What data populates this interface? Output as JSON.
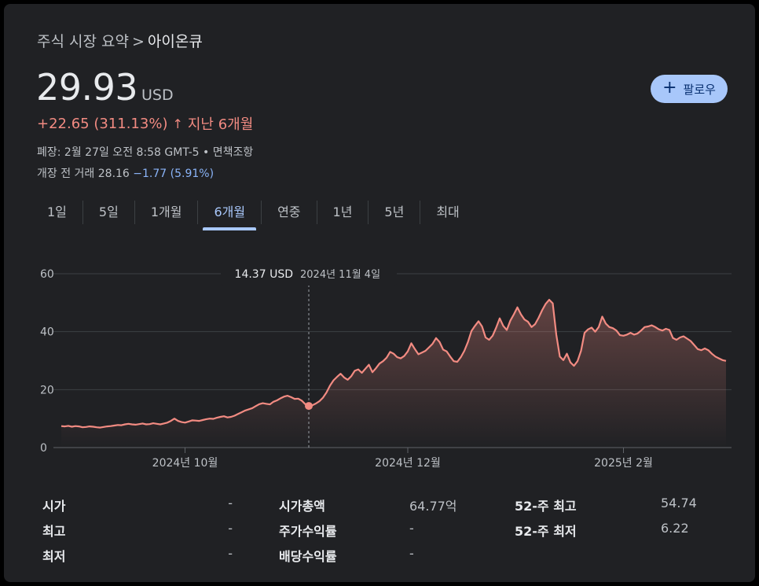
{
  "breadcrumb": {
    "parent": "주식 시장 요약",
    "separator": ">",
    "current": "아이온큐"
  },
  "quote": {
    "price": "29.93",
    "currency": "USD",
    "change_text": "+22.65 (311.13%)",
    "change_arrow": "↑",
    "change_period": "지난 6개월",
    "status_line": "폐장: 2월 27일 오전 8:58 GMT-5 • 면책조항",
    "premarket_label": "개장 전 거래 28.16",
    "premarket_change": "−1.77 (5.91%)"
  },
  "follow_button": {
    "icon": "plus-icon",
    "label": "팔로우"
  },
  "tabs": [
    {
      "label": "1일",
      "active": false
    },
    {
      "label": "5일",
      "active": false
    },
    {
      "label": "1개월",
      "active": false
    },
    {
      "label": "6개월",
      "active": true
    },
    {
      "label": "연중",
      "active": false
    },
    {
      "label": "1년",
      "active": false
    },
    {
      "label": "5년",
      "active": false
    },
    {
      "label": "최대",
      "active": false
    }
  ],
  "colors": {
    "line": "#f28b82",
    "positive": "#f28b82",
    "negative": "#8ab4f8",
    "accent": "#a8c7fa",
    "grid": "#3c4043"
  },
  "chart_data": {
    "type": "area",
    "ylim": [
      0,
      60
    ],
    "y_ticks": [
      0,
      20,
      40,
      60
    ],
    "x_ticks": [
      {
        "label": "2024년 10월",
        "index": 35
      },
      {
        "label": "2024년 12월",
        "index": 98
      },
      {
        "label": "2025년 2월",
        "index": 159
      }
    ],
    "tooltip": {
      "value": "14.37 USD",
      "date": "2024년 11월 4일",
      "index": 70
    },
    "values": [
      7.4,
      7.3,
      7.5,
      7.2,
      7.4,
      7.3,
      7.0,
      7.1,
      7.3,
      7.2,
      7.0,
      6.9,
      7.1,
      7.3,
      7.4,
      7.6,
      7.8,
      7.7,
      8.0,
      8.2,
      8.0,
      7.9,
      8.1,
      8.3,
      8.0,
      8.1,
      8.4,
      8.2,
      8.0,
      8.3,
      8.6,
      9.2,
      10.0,
      9.2,
      8.8,
      8.6,
      9.0,
      9.4,
      9.3,
      9.2,
      9.5,
      9.8,
      10.0,
      9.9,
      10.3,
      10.6,
      10.8,
      10.4,
      10.6,
      11.0,
      11.6,
      12.2,
      12.8,
      13.2,
      13.6,
      14.3,
      15.0,
      15.3,
      15.1,
      14.9,
      15.8,
      16.3,
      17.0,
      17.6,
      17.9,
      17.4,
      16.8,
      16.9,
      16.2,
      15.0,
      14.37,
      14.6,
      15.2,
      16.0,
      17.2,
      19.0,
      21.4,
      23.2,
      24.4,
      25.5,
      24.2,
      23.4,
      24.6,
      26.5,
      27.0,
      25.8,
      27.2,
      28.6,
      26.0,
      27.4,
      29.0,
      29.8,
      31.0,
      33.0,
      32.4,
      31.2,
      30.8,
      31.6,
      33.2,
      36.0,
      34.0,
      32.2,
      32.8,
      33.4,
      34.6,
      35.8,
      37.8,
      36.4,
      33.8,
      33.2,
      31.4,
      29.8,
      29.6,
      31.2,
      33.4,
      36.4,
      40.2,
      42.0,
      43.6,
      41.8,
      38.0,
      37.2,
      38.6,
      41.4,
      44.6,
      42.0,
      40.6,
      43.8,
      46.0,
      48.4,
      46.0,
      44.2,
      43.4,
      41.6,
      42.6,
      44.8,
      47.4,
      49.6,
      51.0,
      49.8,
      39.0,
      31.4,
      30.2,
      32.4,
      29.4,
      28.2,
      29.8,
      33.4,
      39.6,
      40.8,
      41.4,
      40.0,
      41.6,
      45.2,
      42.8,
      41.6,
      41.2,
      40.4,
      38.8,
      38.6,
      39.0,
      39.6,
      39.0,
      39.4,
      40.4,
      41.6,
      41.8,
      42.2,
      41.6,
      40.8,
      40.4,
      41.0,
      40.6,
      37.8,
      37.2,
      38.0,
      38.4,
      37.6,
      36.8,
      35.4,
      34.0,
      33.6,
      34.2,
      33.6,
      32.4,
      31.4,
      30.8,
      30.2,
      29.93
    ]
  },
  "stats": [
    {
      "label": "시가",
      "value": "-"
    },
    {
      "label": "최고",
      "value": "-"
    },
    {
      "label": "최저",
      "value": "-"
    },
    {
      "label": "시가총액",
      "value": "64.77억"
    },
    {
      "label": "주가수익률",
      "value": "-"
    },
    {
      "label": "배당수익률",
      "value": "-"
    },
    {
      "label": "52-주 최고",
      "value": "54.74"
    },
    {
      "label": "52-주 최저",
      "value": "6.22"
    }
  ]
}
